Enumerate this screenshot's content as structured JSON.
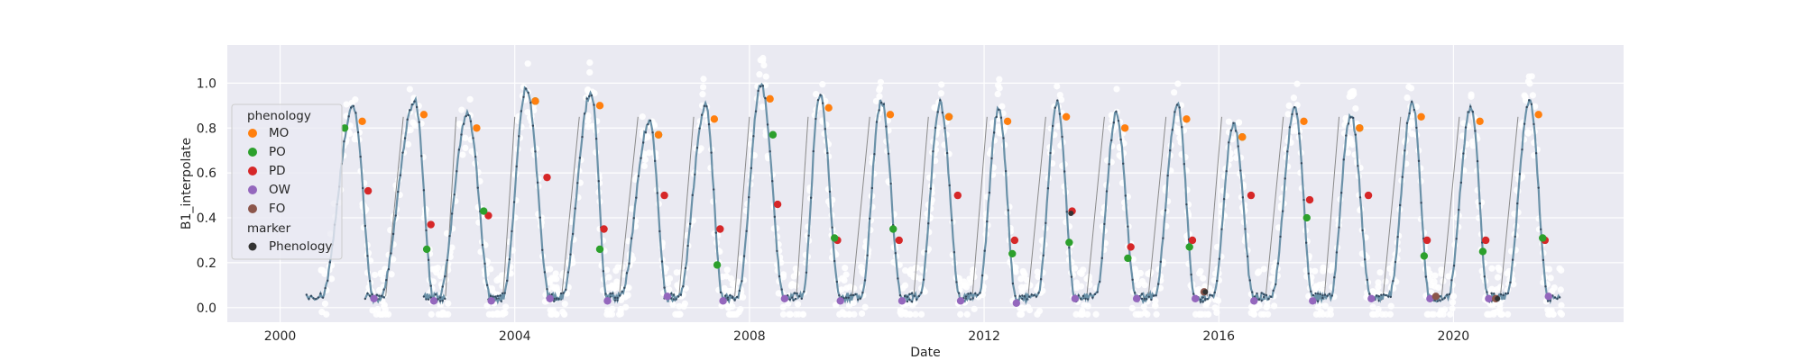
{
  "chart_data": {
    "type": "scatter",
    "title": "",
    "xlabel": "Date",
    "ylabel": "B1_interpolate",
    "xlim": [
      1999.1,
      2022.9
    ],
    "ylim": [
      -0.065,
      1.17
    ],
    "x_ticks": [
      2000,
      2004,
      2008,
      2012,
      2016,
      2020
    ],
    "x_tick_labels": [
      "2000",
      "2004",
      "2008",
      "2012",
      "2016",
      "2020"
    ],
    "y_ticks": [
      0.0,
      0.2,
      0.4,
      0.6,
      0.8,
      1.0
    ],
    "y_tick_labels": [
      "0.0",
      "0.2",
      "0.4",
      "0.6",
      "0.8",
      "1.0"
    ],
    "grid": true,
    "legend_position": "left",
    "colors": {
      "plot_bg": "#eaeaf2",
      "grid": "#ffffff",
      "raw_points": "#ffffff",
      "series_line": "#6a91a8",
      "series_dots": "#34495e",
      "connector": "#8a8a8a",
      "MO": "#ff7f0e",
      "PO": "#2ca02c",
      "PD": "#d62728",
      "OW": "#9467bd",
      "FO": "#8c564b",
      "marker_black": "#333333"
    },
    "legend": {
      "hue_title": "phenology",
      "hue_entries": [
        "MO",
        "PO",
        "PD",
        "OW",
        "FO"
      ],
      "marker_title": "marker",
      "marker_entries": [
        "Phenology"
      ]
    },
    "seasons": [
      {
        "mo_x": 2001.4,
        "mo_y": 0.83,
        "po_x": 2001.1,
        "po_y": 0.8,
        "pd_x": 2001.5,
        "pd_y": 0.52,
        "ow_x": 2001.6,
        "ow_y": 0.04,
        "low_start": 2000.7
      },
      {
        "mo_x": 2002.45,
        "mo_y": 0.86,
        "po_x": 2002.5,
        "po_y": 0.26,
        "pd_x": 2002.57,
        "pd_y": 0.37,
        "ow_x": 2002.62,
        "ow_y": 0.03,
        "low_start": 2001.7
      },
      {
        "mo_x": 2003.35,
        "mo_y": 0.8,
        "po_x": 2003.47,
        "po_y": 0.43,
        "pd_x": 2003.55,
        "pd_y": 0.41,
        "ow_x": 2003.6,
        "ow_y": 0.03,
        "low_start": 2002.7
      },
      {
        "mo_x": 2004.35,
        "mo_y": 0.92,
        "po_x": 2004.35,
        "po_y": 0.92,
        "pd_x": 2004.55,
        "pd_y": 0.58,
        "ow_x": 2004.6,
        "ow_y": 0.04,
        "low_start": 2003.8
      },
      {
        "mo_x": 2005.45,
        "mo_y": 0.9,
        "po_x": 2005.45,
        "po_y": 0.26,
        "pd_x": 2005.52,
        "pd_y": 0.35,
        "ow_x": 2005.58,
        "ow_y": 0.03,
        "low_start": 2004.8
      },
      {
        "mo_x": 2006.45,
        "mo_y": 0.77,
        "po_x": 2006.45,
        "po_y": 0.77,
        "pd_x": 2006.55,
        "pd_y": 0.5,
        "ow_x": 2006.6,
        "ow_y": 0.05,
        "low_start": 2005.8
      },
      {
        "mo_x": 2007.4,
        "mo_y": 0.84,
        "po_x": 2007.45,
        "po_y": 0.19,
        "pd_x": 2007.5,
        "pd_y": 0.35,
        "ow_x": 2007.55,
        "ow_y": 0.03,
        "low_start": 2006.8
      },
      {
        "mo_x": 2008.35,
        "mo_y": 0.93,
        "po_x": 2008.4,
        "po_y": 0.77,
        "pd_x": 2008.48,
        "pd_y": 0.46,
        "ow_x": 2008.6,
        "ow_y": 0.04,
        "low_start": 2007.8
      },
      {
        "mo_x": 2009.35,
        "mo_y": 0.89,
        "po_x": 2009.45,
        "po_y": 0.31,
        "pd_x": 2009.5,
        "pd_y": 0.3,
        "ow_x": 2009.55,
        "ow_y": 0.03,
        "low_start": 2008.9
      },
      {
        "mo_x": 2010.4,
        "mo_y": 0.86,
        "po_x": 2010.45,
        "po_y": 0.35,
        "pd_x": 2010.55,
        "pd_y": 0.3,
        "ow_x": 2010.6,
        "ow_y": 0.03,
        "low_start": 2009.9
      },
      {
        "mo_x": 2011.4,
        "mo_y": 0.85,
        "po_x": 2011.4,
        "po_y": 0.85,
        "pd_x": 2011.55,
        "pd_y": 0.5,
        "ow_x": 2011.6,
        "ow_y": 0.03,
        "low_start": 2010.9
      },
      {
        "mo_x": 2012.4,
        "mo_y": 0.83,
        "po_x": 2012.48,
        "po_y": 0.24,
        "pd_x": 2012.52,
        "pd_y": 0.3,
        "ow_x": 2012.55,
        "ow_y": 0.02,
        "low_start": 2011.9
      },
      {
        "mo_x": 2013.4,
        "mo_y": 0.85,
        "po_x": 2013.45,
        "po_y": 0.29,
        "pd_x": 2013.5,
        "pd_y": 0.43,
        "ow_x": 2013.55,
        "ow_y": 0.04,
        "low_start": 2012.9
      },
      {
        "mo_x": 2014.4,
        "mo_y": 0.8,
        "po_x": 2014.45,
        "po_y": 0.22,
        "pd_x": 2014.5,
        "pd_y": 0.27,
        "ow_x": 2014.6,
        "ow_y": 0.04,
        "low_start": 2013.9
      },
      {
        "mo_x": 2015.45,
        "mo_y": 0.84,
        "po_x": 2015.5,
        "po_y": 0.27,
        "pd_x": 2015.55,
        "pd_y": 0.3,
        "ow_x": 2015.6,
        "ow_y": 0.04,
        "low_start": 2014.9
      },
      {
        "mo_x": 2016.4,
        "mo_y": 0.76,
        "po_x": 2016.4,
        "po_y": 0.76,
        "pd_x": 2016.55,
        "pd_y": 0.5,
        "ow_x": 2016.6,
        "ow_y": 0.03,
        "low_start": 2015.9
      },
      {
        "mo_x": 2017.45,
        "mo_y": 0.83,
        "po_x": 2017.5,
        "po_y": 0.4,
        "pd_x": 2017.55,
        "pd_y": 0.48,
        "ow_x": 2017.6,
        "ow_y": 0.03,
        "low_start": 2016.9
      },
      {
        "mo_x": 2018.4,
        "mo_y": 0.8,
        "po_x": 2018.4,
        "po_y": 0.8,
        "pd_x": 2018.55,
        "pd_y": 0.5,
        "ow_x": 2018.6,
        "ow_y": 0.04,
        "low_start": 2017.9
      },
      {
        "mo_x": 2019.45,
        "mo_y": 0.85,
        "po_x": 2019.5,
        "po_y": 0.23,
        "pd_x": 2019.55,
        "pd_y": 0.3,
        "ow_x": 2019.6,
        "ow_y": 0.04,
        "low_start": 2018.9
      },
      {
        "mo_x": 2020.45,
        "mo_y": 0.83,
        "po_x": 2020.5,
        "po_y": 0.25,
        "pd_x": 2020.55,
        "pd_y": 0.3,
        "ow_x": 2020.6,
        "ow_y": 0.04,
        "low_start": 2019.9
      },
      {
        "mo_x": 2021.45,
        "mo_y": 0.86,
        "po_x": 2021.52,
        "po_y": 0.31,
        "pd_x": 2021.56,
        "pd_y": 0.3,
        "ow_x": 2021.62,
        "ow_y": 0.05,
        "low_start": 2020.9
      }
    ],
    "special_points": [
      {
        "phenology": "FO",
        "x": 2015.75,
        "y": 0.07
      },
      {
        "phenology": "FO",
        "x": 2019.7,
        "y": 0.05
      },
      {
        "phenology": "FO",
        "x": 2020.72,
        "y": 0.04
      }
    ],
    "marker_black_points": [
      {
        "x": 2013.48,
        "y": 0.42
      },
      {
        "x": 2015.77,
        "y": 0.07
      },
      {
        "x": 2020.75,
        "y": 0.04
      }
    ]
  }
}
